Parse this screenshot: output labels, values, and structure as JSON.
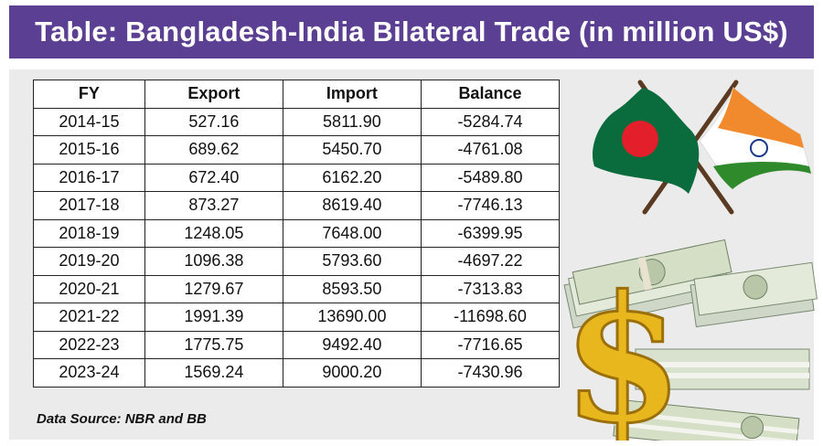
{
  "title": "Table: Bangladesh-India Bilateral Trade (in million US$)",
  "table": {
    "headers": [
      "FY",
      "Export",
      "Import",
      "Balance"
    ],
    "rows": [
      [
        "2014-15",
        "527.16",
        "5811.90",
        "-5284.74"
      ],
      [
        "2015-16",
        "689.62",
        "5450.70",
        "-4761.08"
      ],
      [
        "2016-17",
        "672.40",
        "6162.20",
        "-5489.80"
      ],
      [
        "2017-18",
        "873.27",
        "8619.40",
        "-7746.13"
      ],
      [
        "2018-19",
        "1248.05",
        "7648.00",
        "-6399.95"
      ],
      [
        "2019-20",
        "1096.38",
        "5793.60",
        "-4697.22"
      ],
      [
        "2020-21",
        "1279.67",
        "8593.50",
        "-7313.83"
      ],
      [
        "2021-22",
        "1991.39",
        "13690.00",
        "-11698.60"
      ],
      [
        "2022-23",
        "1775.75",
        "9492.40",
        "-7716.65"
      ],
      [
        "2023-24",
        "1569.24",
        "9000.20",
        "-7430.96"
      ]
    ]
  },
  "source": "Data Source: NBR and BB",
  "colors": {
    "title_bg": "#5b3f93",
    "panel_bg": "#ebebeb",
    "bangladesh_green": "#0a6b3c",
    "bangladesh_red": "#e21f2a",
    "india_saffron": "#f08a2c",
    "india_green": "#2e8a2a",
    "chakra_blue": "#1b3a8a",
    "gold": "#e8b71e"
  },
  "icons": [
    "bangladesh-flag-icon",
    "india-flag-icon",
    "dollar-sign-icon",
    "money-stack-icon"
  ]
}
